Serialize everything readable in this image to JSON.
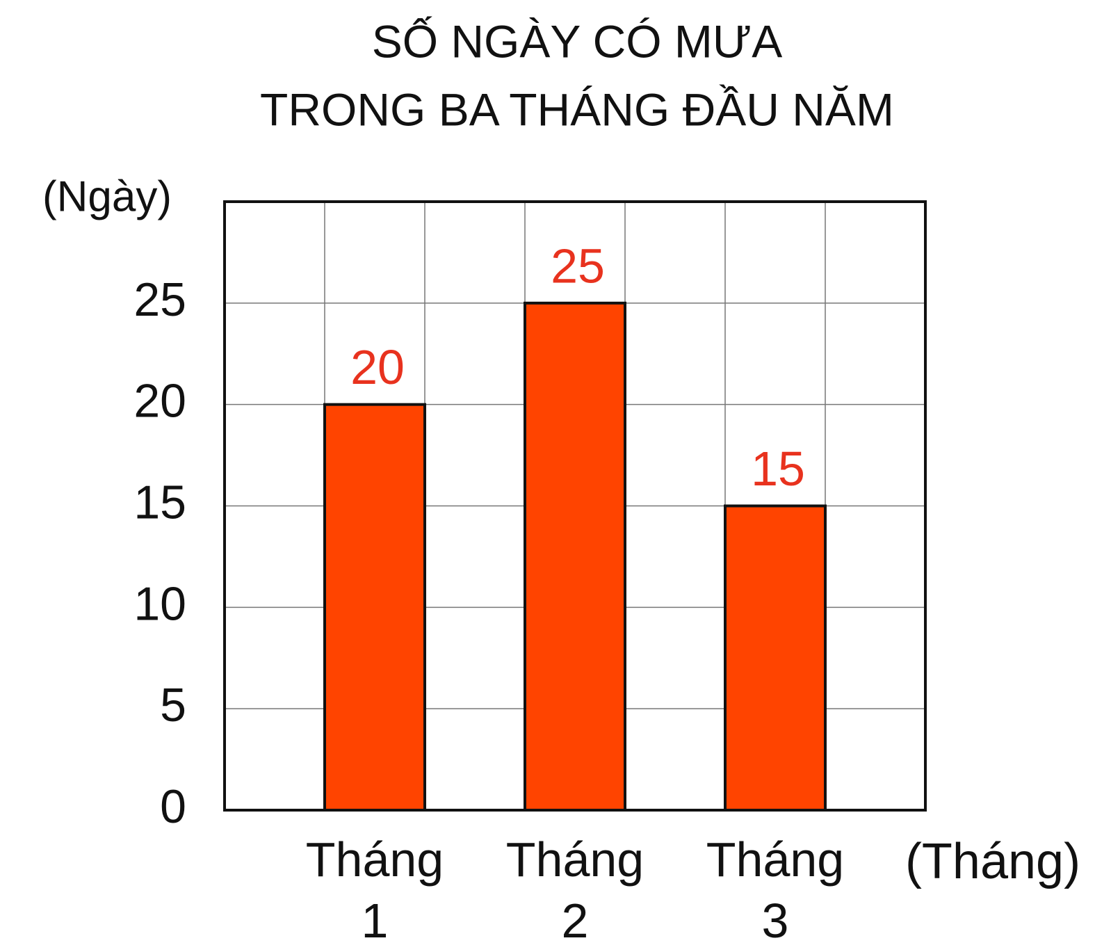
{
  "chart_data": {
    "type": "bar",
    "title": [
      "SỐ NGÀY CÓ MƯA",
      "TRONG BA THÁNG ĐẦU NĂM"
    ],
    "y_label": "(Ngày)",
    "x_label": "(Tháng)",
    "categories": [
      "Tháng 1",
      "Tháng 2",
      "Tháng 3"
    ],
    "values": [
      20,
      25,
      15
    ],
    "color": "#ff4400",
    "value_label_color": "#e8321e",
    "ylim": [
      0,
      30
    ],
    "yticks": [
      0,
      5,
      10,
      15,
      20,
      25
    ],
    "grid": true
  }
}
